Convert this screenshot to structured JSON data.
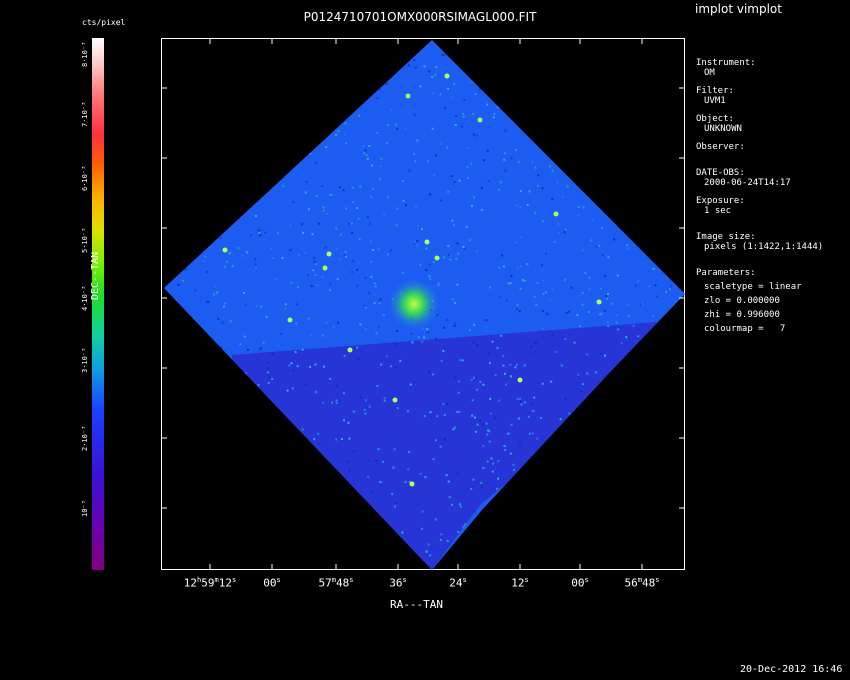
{
  "header": {
    "app_title": "implot vimplot",
    "image_title": "P0124710701OMX000RSIMAGL000.FIT"
  },
  "colorbar": {
    "unit_label": "cts/pixel",
    "ticks": [
      "8·10⁻³",
      "7·10⁻³",
      "6·10⁻³",
      "5·10⁻³",
      "4·10⁻³",
      "3·10⁻³",
      "2·10⁻³",
      "10⁻³"
    ],
    "colormap": [
      "#800080",
      "#3a10d8",
      "#1a40ff",
      "#10a0e0",
      "#20e020",
      "#e0e000",
      "#ff6000",
      "#ff3040",
      "#ffffff"
    ]
  },
  "axes": {
    "ylabel": "DEC--TAN",
    "xlabel": "RA---TAN",
    "xticks": [
      {
        "main": "12",
        "s1": "h",
        "mid": "59",
        "s2": "m",
        "end": "12",
        "s3": "s"
      },
      {
        "main": "00",
        "s1": "",
        "mid": "",
        "s2": "",
        "end": "",
        "s3": "s"
      },
      {
        "main": "57",
        "s1": "m",
        "mid": "48",
        "s2": "",
        "end": "",
        "s3": "s"
      },
      {
        "main": "36",
        "s1": "",
        "mid": "",
        "s2": "",
        "end": "",
        "s3": "s"
      },
      {
        "main": "24",
        "s1": "",
        "mid": "",
        "s2": "",
        "end": "",
        "s3": "s"
      },
      {
        "main": "12",
        "s1": "",
        "mid": "",
        "s2": "",
        "end": "",
        "s3": "s"
      },
      {
        "main": "00",
        "s1": "",
        "mid": "",
        "s2": "",
        "end": "",
        "s3": "s"
      },
      {
        "main": "56",
        "s1": "m",
        "mid": "48",
        "s2": "",
        "end": "",
        "s3": "s"
      }
    ]
  },
  "info": {
    "instrument_label": "Instrument:",
    "instrument": "OM",
    "filter_label": "Filter:",
    "filter": "UVM1",
    "object_label": "Object:",
    "object": "UNKNOWN",
    "observer_label": "Observer:",
    "date_label": "DATE-OBS:",
    "date": "2000-06-24T14:17",
    "exposure_label": "Exposure:",
    "exposure": "1 sec",
    "size_label": "Image size:",
    "size": "pixels (1:1422,1:1444)",
    "params_label": "Parameters:",
    "scaletype": "scaletype = linear",
    "zlo": "zlo = 0.000000",
    "zhi": "zhi = 0.996000",
    "colourmap": "colourmap =   7"
  },
  "timestamp": "20-Dec-2012 16:46"
}
